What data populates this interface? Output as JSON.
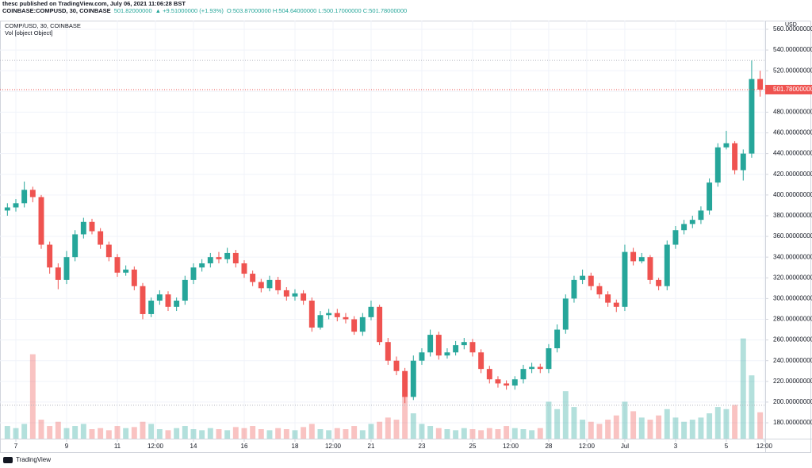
{
  "header": {
    "publisher": "thesc published on TradingView.com, July 06, 2021 11:06:28 BST",
    "symbol": "COINBASE:COMPUSD, 30, COINBASE",
    "price": "501.82000000",
    "change": "▲ +9.51000000 (+1.93%)",
    "ohlc": "O:503.87000000 H:504.64000000 L:500.17000000 C:501.78000000"
  },
  "chart_data": {
    "type": "candlestick",
    "legend": "COMP/USD, 30, COINBASE",
    "volume_legend": "Vol [object Object]",
    "y_unit": "USD",
    "up_color": "#26a69a",
    "down_color": "#ef5350",
    "grid": true,
    "open": [
      385,
      388,
      392,
      405,
      398,
      352,
      330,
      318,
      340,
      362,
      374,
      365,
      352,
      340,
      325,
      328,
      312,
      285,
      298,
      304,
      292,
      298,
      318,
      330,
      334,
      340,
      338,
      344,
      334,
      324,
      316,
      310,
      318,
      308,
      302,
      305,
      298,
      272,
      284,
      286,
      282,
      280,
      268,
      282,
      292,
      258,
      240,
      230,
      205,
      240,
      248,
      265,
      245,
      248,
      255,
      258,
      248,
      232,
      222,
      218,
      216,
      222,
      232,
      234,
      232,
      252,
      270,
      300,
      318,
      322,
      312,
      304,
      296,
      292,
      345,
      336,
      340,
      318,
      312,
      352,
      366,
      372,
      376,
      385,
      412,
      446,
      450,
      424,
      440,
      512
    ],
    "high": [
      392,
      396,
      413,
      408,
      400,
      355,
      334,
      346,
      366,
      378,
      377,
      368,
      355,
      343,
      332,
      331,
      315,
      301,
      308,
      307,
      301,
      322,
      334,
      338,
      344,
      345,
      349,
      347,
      337,
      327,
      319,
      322,
      321,
      311,
      309,
      308,
      301,
      288,
      290,
      290,
      286,
      283,
      286,
      298,
      294,
      262,
      244,
      233,
      245,
      252,
      270,
      268,
      252,
      259,
      262,
      261,
      251,
      235,
      225,
      221,
      225,
      236,
      238,
      237,
      256,
      275,
      304,
      322,
      328,
      325,
      315,
      307,
      299,
      352,
      349,
      344,
      342,
      320,
      356,
      370,
      376,
      380,
      389,
      416,
      450,
      462,
      452,
      444,
      530,
      520
    ],
    "low": [
      380,
      384,
      388,
      393,
      348,
      324,
      309,
      314,
      336,
      358,
      362,
      348,
      336,
      321,
      322,
      308,
      280,
      282,
      294,
      288,
      288,
      294,
      314,
      326,
      330,
      334,
      334,
      330,
      320,
      312,
      306,
      307,
      304,
      298,
      298,
      294,
      268,
      270,
      280,
      278,
      276,
      265,
      264,
      279,
      255,
      236,
      226,
      199,
      202,
      236,
      244,
      241,
      242,
      245,
      251,
      244,
      228,
      218,
      214,
      212,
      212,
      218,
      228,
      228,
      228,
      248,
      266,
      296,
      314,
      308,
      300,
      292,
      287,
      288,
      332,
      334,
      314,
      308,
      308,
      348,
      362,
      368,
      372,
      381,
      408,
      444,
      420,
      414,
      436,
      495
    ],
    "close": [
      388,
      392,
      405,
      398,
      352,
      330,
      318,
      340,
      362,
      374,
      365,
      352,
      340,
      325,
      328,
      312,
      285,
      298,
      304,
      292,
      298,
      318,
      330,
      334,
      340,
      338,
      344,
      334,
      324,
      316,
      310,
      318,
      308,
      302,
      305,
      298,
      272,
      284,
      286,
      282,
      280,
      268,
      282,
      292,
      258,
      240,
      230,
      205,
      240,
      248,
      265,
      245,
      248,
      255,
      258,
      248,
      232,
      222,
      218,
      216,
      222,
      232,
      234,
      232,
      252,
      270,
      300,
      318,
      322,
      312,
      304,
      296,
      292,
      345,
      336,
      340,
      318,
      312,
      352,
      366,
      372,
      376,
      385,
      412,
      446,
      450,
      424,
      440,
      512,
      501.78
    ],
    "volume": [
      12,
      10,
      14,
      80,
      18,
      12,
      16,
      10,
      12,
      14,
      9,
      10,
      8,
      12,
      10,
      11,
      16,
      14,
      9,
      8,
      10,
      12,
      9,
      8,
      10,
      9,
      8,
      11,
      10,
      12,
      9,
      8,
      10,
      9,
      8,
      11,
      14,
      9,
      8,
      10,
      9,
      12,
      8,
      14,
      16,
      20,
      18,
      40,
      24,
      14,
      12,
      10,
      9,
      8,
      10,
      9,
      8,
      10,
      9,
      12,
      10,
      9,
      8,
      10,
      35,
      28,
      45,
      30,
      18,
      16,
      14,
      18,
      22,
      35,
      26,
      20,
      18,
      22,
      28,
      20,
      16,
      18,
      20,
      24,
      30,
      28,
      32,
      95,
      60,
      25
    ],
    "vlim": [
      0,
      100
    ],
    "last_price": {
      "value": 501.78,
      "label": "501.78000000"
    },
    "hlines": [
      530,
      197
    ],
    "xlim": [
      -0.875,
      89.6
    ],
    "xticks": [
      {
        "value": 1,
        "label": "7"
      },
      {
        "value": 7,
        "label": "9"
      },
      {
        "value": 13,
        "label": "11"
      },
      {
        "value": 17.5,
        "label": "12:00"
      },
      {
        "value": 22,
        "label": "14"
      },
      {
        "value": 28,
        "label": "16"
      },
      {
        "value": 34,
        "label": "18"
      },
      {
        "value": 38.5,
        "label": "12:00"
      },
      {
        "value": 43,
        "label": "21"
      },
      {
        "value": 49,
        "label": "23"
      },
      {
        "value": 55,
        "label": "25"
      },
      {
        "value": 59.5,
        "label": "12:00"
      },
      {
        "value": 64,
        "label": "28"
      },
      {
        "value": 68.5,
        "label": "12:00"
      },
      {
        "value": 73,
        "label": "Jul"
      },
      {
        "value": 79,
        "label": "3"
      },
      {
        "value": 85,
        "label": "5"
      },
      {
        "value": 89.5,
        "label": "12:00"
      }
    ],
    "ylim": [
      164.7,
      568.4
    ],
    "yticks": [
      {
        "value": 180,
        "label": "180.00000000"
      },
      {
        "value": 200,
        "label": "200.00000000"
      },
      {
        "value": 220,
        "label": "220.00000000"
      },
      {
        "value": 240,
        "label": "240.00000000"
      },
      {
        "value": 260,
        "label": "260.00000000"
      },
      {
        "value": 280,
        "label": "280.00000000"
      },
      {
        "value": 300,
        "label": "300.00000000"
      },
      {
        "value": 320,
        "label": "320.00000000"
      },
      {
        "value": 340,
        "label": "340.00000000"
      },
      {
        "value": 360,
        "label": "360.00000000"
      },
      {
        "value": 380,
        "label": "380.00000000"
      },
      {
        "value": 400,
        "label": "400.00000000"
      },
      {
        "value": 420,
        "label": "420.00000000"
      },
      {
        "value": 440,
        "label": "440.00000000"
      },
      {
        "value": 460,
        "label": "460.00000000"
      },
      {
        "value": 480,
        "label": "480.00000000"
      },
      {
        "value": 500,
        "label": "500.00000000"
      },
      {
        "value": 520,
        "label": "520.00000000"
      },
      {
        "value": 540,
        "label": "540.00000000"
      },
      {
        "value": 560,
        "label": "560.00000000"
      }
    ]
  },
  "footer": {
    "logo": "TradingView"
  }
}
